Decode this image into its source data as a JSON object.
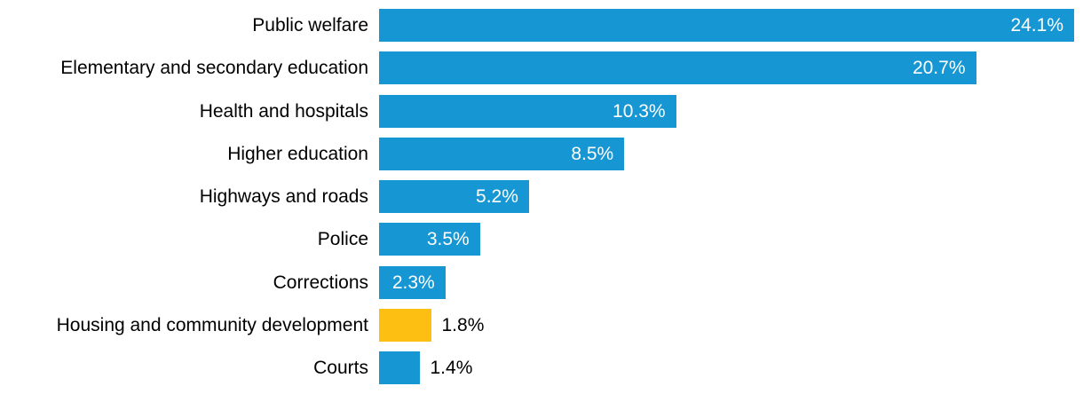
{
  "chart_data": {
    "type": "bar",
    "orientation": "horizontal",
    "title": "",
    "categories": [
      "Public welfare",
      "Elementary and secondary education",
      "Health and hospitals",
      "Higher education",
      "Highways and roads",
      "Police",
      "Corrections",
      "Housing and community development",
      "Courts"
    ],
    "values": [
      24.1,
      20.7,
      10.3,
      8.5,
      5.2,
      3.5,
      2.3,
      1.8,
      1.4
    ],
    "value_labels": [
      "24.1%",
      "20.7%",
      "10.3%",
      "8.5%",
      "5.2%",
      "3.5%",
      "2.3%",
      "1.8%",
      "1.4%"
    ],
    "value_suffix": "%",
    "xlim": [
      0,
      24.1
    ],
    "axes_visible": false,
    "grid": false,
    "legend": null,
    "highlighted_category": "Housing and community development",
    "highlight_index": 7,
    "colors": {
      "bar_default": "#1696d2",
      "bar_highlight": "#fdbf11",
      "value_inside_text": "#ffffff",
      "value_outside_text": "#000000",
      "category_text": "#000000",
      "background": "#ffffff"
    }
  }
}
